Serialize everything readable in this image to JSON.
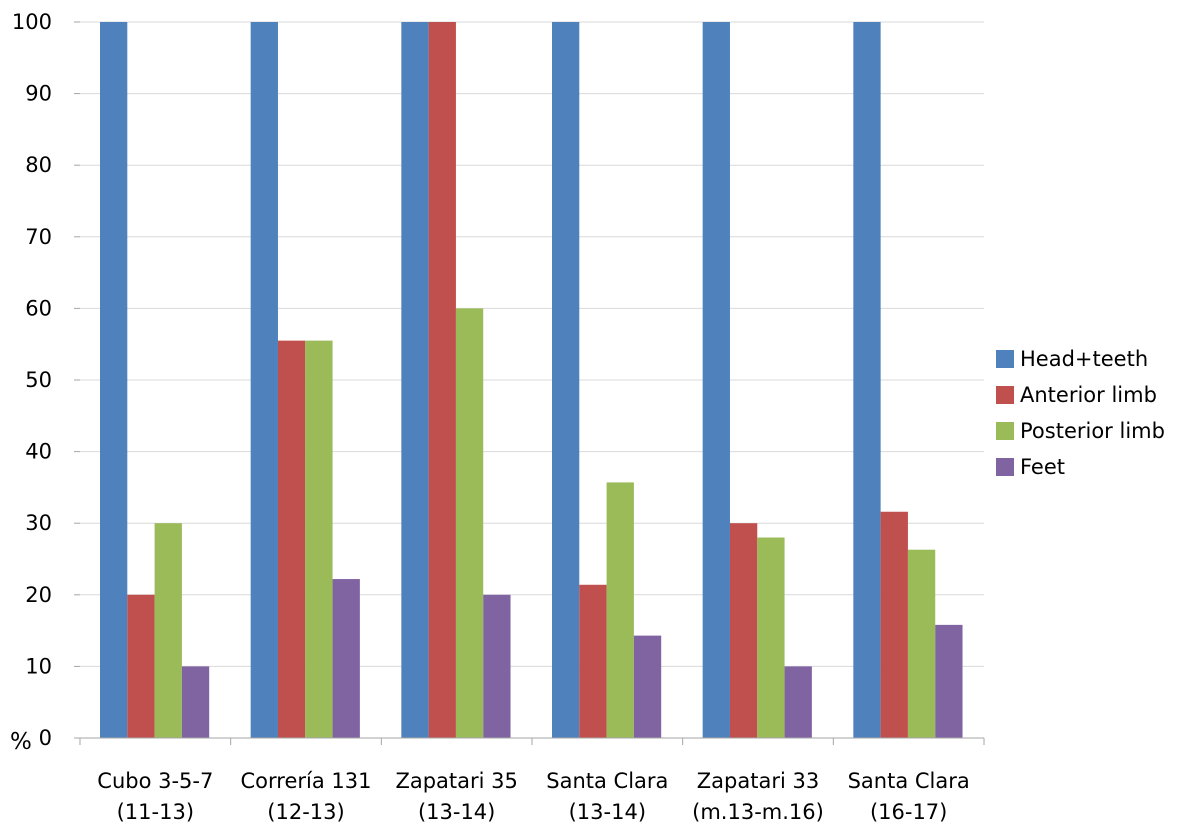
{
  "chart_data": {
    "type": "bar",
    "ylabel": "%",
    "ylim": [
      0,
      100
    ],
    "yticks": [
      0,
      10,
      20,
      30,
      40,
      50,
      60,
      70,
      80,
      90,
      100
    ],
    "grid": true,
    "legend_position": "right",
    "categories": [
      [
        "Cubo 3-5-7",
        "(11-13)"
      ],
      [
        "Correría 131",
        "(12-13)"
      ],
      [
        "Zapatari 35",
        "(13-14)"
      ],
      [
        "Santa Clara",
        "(13-14)"
      ],
      [
        "Zapatari 33",
        "(m.13-m.16)"
      ],
      [
        "Santa Clara",
        "(16-17)"
      ]
    ],
    "series": [
      {
        "name": "Head+teeth",
        "color": "#4F81BD",
        "values": [
          100,
          100,
          100,
          100,
          100,
          100
        ]
      },
      {
        "name": "Anterior limb",
        "color": "#C0504D",
        "values": [
          20,
          55.5,
          100,
          21.4,
          30,
          31.6
        ]
      },
      {
        "name": "Posterior limb",
        "color": "#9BBB59",
        "values": [
          30,
          55.5,
          60,
          35.7,
          28,
          26.3
        ]
      },
      {
        "name": "Feet",
        "color": "#8064A2",
        "values": [
          10,
          22.2,
          20,
          14.3,
          10,
          15.8
        ]
      }
    ]
  }
}
